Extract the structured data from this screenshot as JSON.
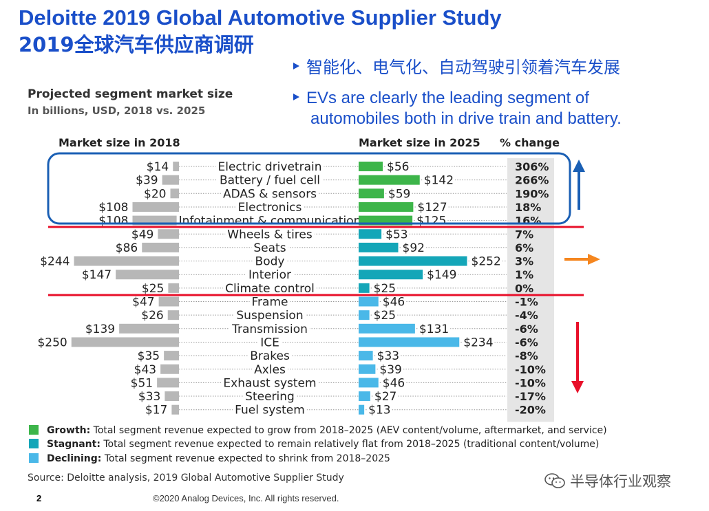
{
  "header": {
    "title_en": "Deloitte 2019 Global Automotive Supplier Study",
    "title_cn": "2019全球汽车供应商调研"
  },
  "bullets": {
    "b1": "智能化、电气化、自动驾驶引领着汽车发展",
    "b2_line1": "EVs are clearly the leading segment of",
    "b2_line2": "automobiles both in drive train and battery."
  },
  "chart_data": {
    "type": "bar",
    "title": "Projected segment market size",
    "subtitle": "In billions, USD, 2018 vs. 2025",
    "col_2018": "Market size in 2018",
    "col_2025": "Market size in 2025",
    "col_change": "% change",
    "categories": [
      "Electric drivetrain",
      "Battery / fuel cell",
      "ADAS & sensors",
      "Electronics",
      "Infotainment & communication",
      "Wheels & tires",
      "Seats",
      "Body",
      "Interior",
      "Climate control",
      "Frame",
      "Suspension",
      "Transmission",
      "ICE",
      "Brakes",
      "Axles",
      "Exhaust system",
      "Steering",
      "Fuel system"
    ],
    "groups": [
      "growth",
      "growth",
      "growth",
      "growth",
      "growth",
      "stagnant",
      "stagnant",
      "stagnant",
      "stagnant",
      "stagnant",
      "declining",
      "declining",
      "declining",
      "declining",
      "declining",
      "declining",
      "declining",
      "declining",
      "declining"
    ],
    "series": [
      {
        "name": "Market size in 2018",
        "values": [
          14,
          39,
          20,
          108,
          108,
          49,
          86,
          244,
          147,
          25,
          47,
          26,
          139,
          250,
          35,
          43,
          51,
          33,
          17
        ]
      },
      {
        "name": "Market size in 2025",
        "values": [
          56,
          142,
          59,
          127,
          125,
          53,
          92,
          252,
          149,
          25,
          46,
          25,
          131,
          234,
          33,
          39,
          46,
          27,
          13
        ]
      }
    ],
    "label_2018": [
      "$14",
      "$39",
      "$20",
      "$108",
      "$108",
      "$49",
      "$86",
      "$244",
      "$147",
      "$25",
      "$47",
      "$26",
      "$139",
      "$250",
      "$35",
      "$43",
      "$51",
      "$33",
      "$17"
    ],
    "label_2025": [
      "$56",
      "$142",
      "$59",
      "$127",
      "$125",
      "$53",
      "$92",
      "$252",
      "$149",
      "$25",
      "$46",
      "$25",
      "$131",
      "$234",
      "$33",
      "$39",
      "$46",
      "$27",
      "$13"
    ],
    "pct_change": [
      "306%",
      "266%",
      "190%",
      "18%",
      "16%",
      "7%",
      "6%",
      "3%",
      "1%",
      "0%",
      "-1%",
      "-4%",
      "-6%",
      "-6%",
      "-8%",
      "-10%",
      "-10%",
      "-17%",
      "-20%"
    ]
  },
  "colors": {
    "growth": "#3db54a",
    "stagnant": "#14a6b8",
    "declining": "#4ab8e8",
    "bar_2018": "#b7b7b7",
    "divider": "#e8102a",
    "highlight_box": "#1a5fb4",
    "arrow_up": "#1a5fb4",
    "arrow_right": "#f5861f",
    "arrow_down": "#e8102a",
    "pct_bg": "#e5e5e5",
    "title": "#1a4fc9"
  },
  "legend": {
    "growth_label": "Growth:",
    "growth_text": "Total segment revenue expected to grow from 2018–2025 (AEV content/volume, aftermarket, and service)",
    "stagnant_label": "Stagnant:",
    "stagnant_text": "Total segment revenue expected to remain relatively flat from 2018–2025 (traditional content/volume)",
    "declining_label": "Declining:",
    "declining_text": "Total segment revenue expected to shrink from 2018–2025"
  },
  "footer": {
    "source": "Source: Deloitte analysis, 2019 Global Automotive Supplier Study",
    "page": "2",
    "copyright": "©2020 Analog Devices, Inc. All rights reserved.",
    "watermark": "半导体行业观察"
  },
  "icons": {
    "bullet": "triangle-bullet-icon",
    "trend_up": "arrow-up-icon",
    "trend_flat": "arrow-right-icon",
    "trend_down": "arrow-down-icon",
    "watermark": "wechat-icon"
  }
}
